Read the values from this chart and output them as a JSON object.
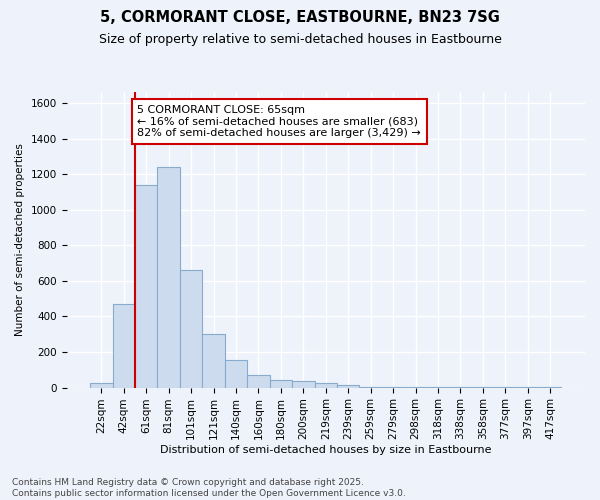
{
  "title": "5, CORMORANT CLOSE, EASTBOURNE, BN23 7SG",
  "subtitle": "Size of property relative to semi-detached houses in Eastbourne",
  "xlabel": "Distribution of semi-detached houses by size in Eastbourne",
  "ylabel": "Number of semi-detached properties",
  "footnote": "Contains HM Land Registry data © Crown copyright and database right 2025.\nContains public sector information licensed under the Open Government Licence v3.0.",
  "bar_labels": [
    "22sqm",
    "42sqm",
    "61sqm",
    "81sqm",
    "101sqm",
    "121sqm",
    "140sqm",
    "160sqm",
    "180sqm",
    "200sqm",
    "219sqm",
    "239sqm",
    "259sqm",
    "279sqm",
    "298sqm",
    "318sqm",
    "338sqm",
    "358sqm",
    "377sqm",
    "397sqm",
    "417sqm"
  ],
  "bar_heights": [
    25,
    470,
    1140,
    1240,
    660,
    300,
    155,
    70,
    45,
    35,
    25,
    15,
    5,
    3,
    3,
    3,
    2,
    2,
    2,
    2,
    5
  ],
  "bar_color": "#ccdcee",
  "bar_edge_color": "#88aacc",
  "pct_smaller": 16,
  "count_smaller": 683,
  "pct_larger": 82,
  "count_larger": 3429,
  "vline_color": "#cc0000",
  "annotation_box_color": "#cc0000",
  "ylim": [
    0,
    1660
  ],
  "yticks": [
    0,
    200,
    400,
    600,
    800,
    1000,
    1200,
    1400,
    1600
  ],
  "background_color": "#eef2fa",
  "grid_color": "#ffffff",
  "title_fontsize": 10.5,
  "subtitle_fontsize": 9,
  "annotation_fontsize": 8,
  "xlabel_fontsize": 8,
  "ylabel_fontsize": 7.5,
  "footnote_fontsize": 6.5,
  "tick_fontsize": 7.5,
  "vline_x_index": 2
}
